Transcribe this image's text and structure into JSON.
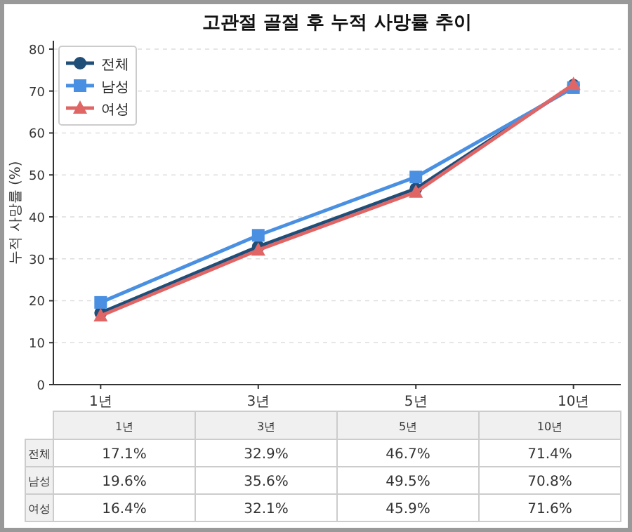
{
  "chart_data": {
    "type": "line",
    "title": "고관절 골절 후 누적 사망률 추이",
    "ylabel": "누적 사망률 (%)",
    "categories": [
      "1년",
      "3년",
      "5년",
      "10년"
    ],
    "series": [
      {
        "name": "전체",
        "color": "#1f4e79",
        "marker": "circle",
        "values": [
          17.1,
          32.9,
          46.7,
          71.4
        ],
        "value_labels": [
          "17.1%",
          "32.9%",
          "46.7%",
          "71.4%"
        ]
      },
      {
        "name": "남성",
        "color": "#4a90e2",
        "marker": "square",
        "values": [
          19.6,
          35.6,
          49.5,
          70.8
        ],
        "value_labels": [
          "19.6%",
          "35.6%",
          "49.5%",
          "70.8%"
        ]
      },
      {
        "name": "여성",
        "color": "#e06666",
        "marker": "triangle",
        "values": [
          16.4,
          32.1,
          45.9,
          71.6
        ],
        "value_labels": [
          "16.4%",
          "32.1%",
          "45.9%",
          "71.6%"
        ]
      }
    ],
    "ylim": [
      0,
      82
    ],
    "yticks": [
      0,
      10,
      20,
      30,
      40,
      50,
      60,
      70,
      80
    ],
    "grid": "y",
    "legend": "top left"
  }
}
